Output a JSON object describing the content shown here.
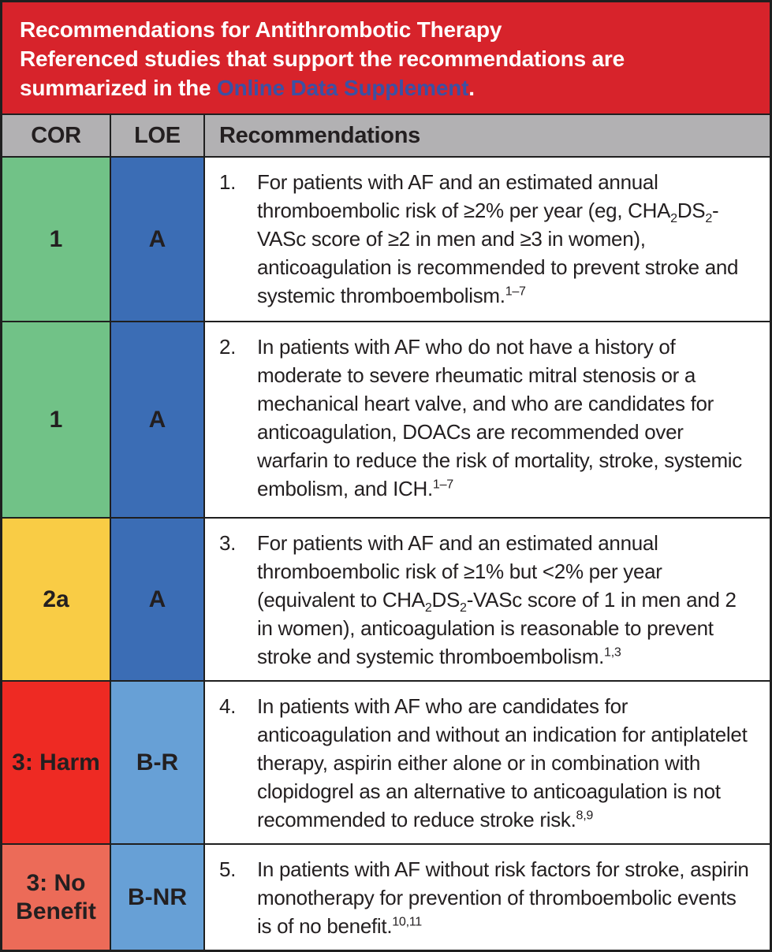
{
  "banner": {
    "bg": "#d7232b",
    "text_color": "#ffffff",
    "link_color": "#3b51a4",
    "line1": "Recommendations for Antithrombotic Therapy",
    "line2": "Referenced studies that support the recommendations are",
    "line3_prefix": "summarized in the ",
    "line3_link": "Online Data Supplement",
    "line3_suffix": "."
  },
  "table": {
    "header_bg": "#b2b1b3",
    "headers": {
      "cor": "COR",
      "loe": "LOE",
      "rec": "Recommendations"
    },
    "rows": [
      {
        "cor": "1",
        "cor_bg": "#71c287",
        "loe": "A",
        "loe_bg": "#3b6db5",
        "num": "1.",
        "segments": [
          {
            "s": "normal",
            "t": "For patients with AF and an estimated annual thromboembolic risk of ≥2% per year (eg, CHA"
          },
          {
            "s": "sub",
            "t": "2"
          },
          {
            "s": "normal",
            "t": "DS"
          },
          {
            "s": "sub",
            "t": "2"
          },
          {
            "s": "normal",
            "t": "-VASc score of ≥2 in men and ≥3 in women), anticoagulation is recommended to prevent stroke and systemic thromboembolism."
          },
          {
            "s": "sup",
            "t": "1–7"
          }
        ]
      },
      {
        "cor": "1",
        "cor_bg": "#71c287",
        "loe": "A",
        "loe_bg": "#3b6db5",
        "num": "2.",
        "segments": [
          {
            "s": "normal",
            "t": "In patients with AF who do not have a history of moderate to severe rheumatic mitral stenosis or a mechanical heart valve, and who are candidates for anticoagulation, DOACs are recommended over warfarin to reduce the risk of mortality, stroke, systemic embolism, and ICH."
          },
          {
            "s": "sup",
            "t": "1–7"
          }
        ]
      },
      {
        "cor": "2a",
        "cor_bg": "#f9cc45",
        "loe": "A",
        "loe_bg": "#3b6db5",
        "num": "3.",
        "segments": [
          {
            "s": "normal",
            "t": "For patients with AF and an estimated annual thromboembolic risk of ≥1% but <2% per year (equivalent to CHA"
          },
          {
            "s": "sub",
            "t": "2"
          },
          {
            "s": "normal",
            "t": "DS"
          },
          {
            "s": "sub",
            "t": "2"
          },
          {
            "s": "normal",
            "t": "-VASc score of 1 in men and 2 in women), anticoagulation is reasonable to prevent stroke and systemic thromboembolism."
          },
          {
            "s": "sup",
            "t": "1,3"
          }
        ]
      },
      {
        "cor": "3: Harm",
        "cor_bg": "#ee2a23",
        "loe": "B-R",
        "loe_bg": "#67a0d6",
        "num": "4.",
        "segments": [
          {
            "s": "normal",
            "t": "In patients with AF who are candidates for anticoagulation and without an indication for antiplatelet therapy, aspirin either alone or in combination with clopidogrel as an alternative to anticoagulation is not recommended to reduce stroke risk."
          },
          {
            "s": "sup",
            "t": "8,9"
          }
        ]
      },
      {
        "cor": "3: No Benefit",
        "cor_bg": "#ec6b58",
        "loe": "B-NR",
        "loe_bg": "#67a0d6",
        "num": "5.",
        "segments": [
          {
            "s": "normal",
            "t": "In patients with AF without risk factors for stroke, aspirin monotherapy for prevention of thromboembolic events is of no benefit."
          },
          {
            "s": "sup",
            "t": "10,11"
          }
        ]
      }
    ]
  }
}
